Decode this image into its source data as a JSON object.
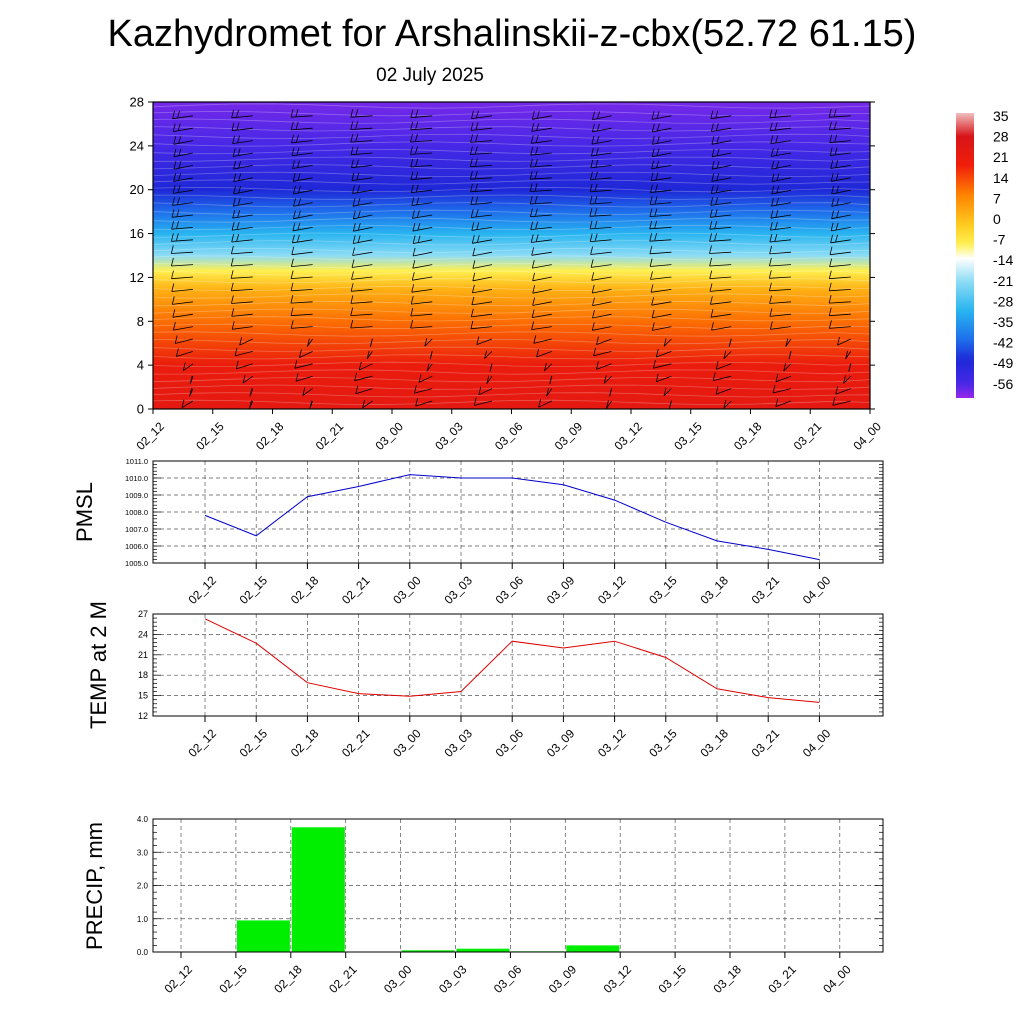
{
  "title": "Kazhydromet for Arshalinskii-z-cbx(52.72 61.15)",
  "subtitle": "02 July 2025",
  "time_labels": [
    "02_12",
    "02_15",
    "02_18",
    "02_21",
    "03_00",
    "03_03",
    "03_06",
    "03_09",
    "03_12",
    "03_15",
    "03_18",
    "03_21",
    "04_00"
  ],
  "chart_data": [
    {
      "type": "heatmap",
      "name": "vertical-temperature-wind-cross-section",
      "x": [
        "02_12",
        "02_15",
        "02_18",
        "02_21",
        "03_00",
        "03_03",
        "03_06",
        "03_09",
        "03_12",
        "03_15",
        "03_18",
        "03_21",
        "04_00"
      ],
      "ylim": [
        0,
        28
      ],
      "yticks": [
        0,
        4,
        8,
        12,
        16,
        20,
        24,
        28
      ],
      "colorbar": {
        "labels": [
          35,
          28,
          21,
          14,
          7,
          0,
          -7,
          -14,
          -21,
          -28,
          -35,
          -42,
          -49,
          -56
        ],
        "range": [
          -60,
          38
        ]
      },
      "temperature_profile": [
        {
          "level": 0,
          "value": 25
        },
        {
          "level": 4,
          "value": 22
        },
        {
          "level": 8,
          "value": 12
        },
        {
          "level": 11,
          "value": 3
        },
        {
          "level": 12.6,
          "value": -7
        },
        {
          "level": 14,
          "value": -20
        },
        {
          "level": 16,
          "value": -30
        },
        {
          "level": 18,
          "value": -40
        },
        {
          "level": 20,
          "value": -47
        },
        {
          "level": 24,
          "value": -55
        },
        {
          "level": 28,
          "value": -58
        }
      ],
      "wind_barbs": true,
      "grid": false
    },
    {
      "type": "line",
      "ylabel": "PMSL",
      "x": [
        "02_12",
        "02_15",
        "02_18",
        "02_21",
        "03_00",
        "03_03",
        "03_06",
        "03_09",
        "03_12",
        "03_15",
        "03_18",
        "03_21",
        "04_00"
      ],
      "values": [
        1007.8,
        1006.6,
        1008.9,
        1009.5,
        1010.2,
        1010.0,
        1010.0,
        1009.6,
        1008.7,
        1007.4,
        1006.3,
        1005.8,
        1005.2
      ],
      "ylim": [
        1005.0,
        1011.0
      ],
      "yticks": [
        "1005.0",
        "1006.0",
        "1007.0",
        "1008.0",
        "1009.0",
        "1010.0",
        "1011.0"
      ],
      "color": "#0000cc",
      "grid": true
    },
    {
      "type": "line",
      "ylabel": "TEMP at 2 M",
      "x": [
        "02_12",
        "02_15",
        "02_18",
        "02_21",
        "03_00",
        "03_03",
        "03_06",
        "03_09",
        "03_12",
        "03_15",
        "03_18",
        "03_21",
        "04_00"
      ],
      "values": [
        26.3,
        22.7,
        16.9,
        15.3,
        14.9,
        15.6,
        23.0,
        22.0,
        23.0,
        20.6,
        16.0,
        14.7,
        14.0
      ],
      "ylim": [
        12,
        27
      ],
      "yticks": [
        "12",
        "15",
        "18",
        "21",
        "24",
        "27"
      ],
      "color": "#dd0000",
      "grid": true
    },
    {
      "type": "bar",
      "ylabel": "PRECIP, mm",
      "categories": [
        "02_12",
        "02_15",
        "02_18",
        "02_21",
        "03_00",
        "03_03",
        "03_06",
        "03_09",
        "03_12",
        "03_15",
        "03_18",
        "03_21",
        "04_00"
      ],
      "values": [
        0,
        0.95,
        3.75,
        0,
        0.05,
        0.1,
        0.02,
        0.2,
        0,
        0,
        0,
        0,
        0
      ],
      "ylim": [
        0,
        4.0
      ],
      "yticks": [
        "0.0",
        "1.0",
        "2.0",
        "3.0",
        "4.0"
      ],
      "color": "#00ee00",
      "grid": true
    }
  ]
}
